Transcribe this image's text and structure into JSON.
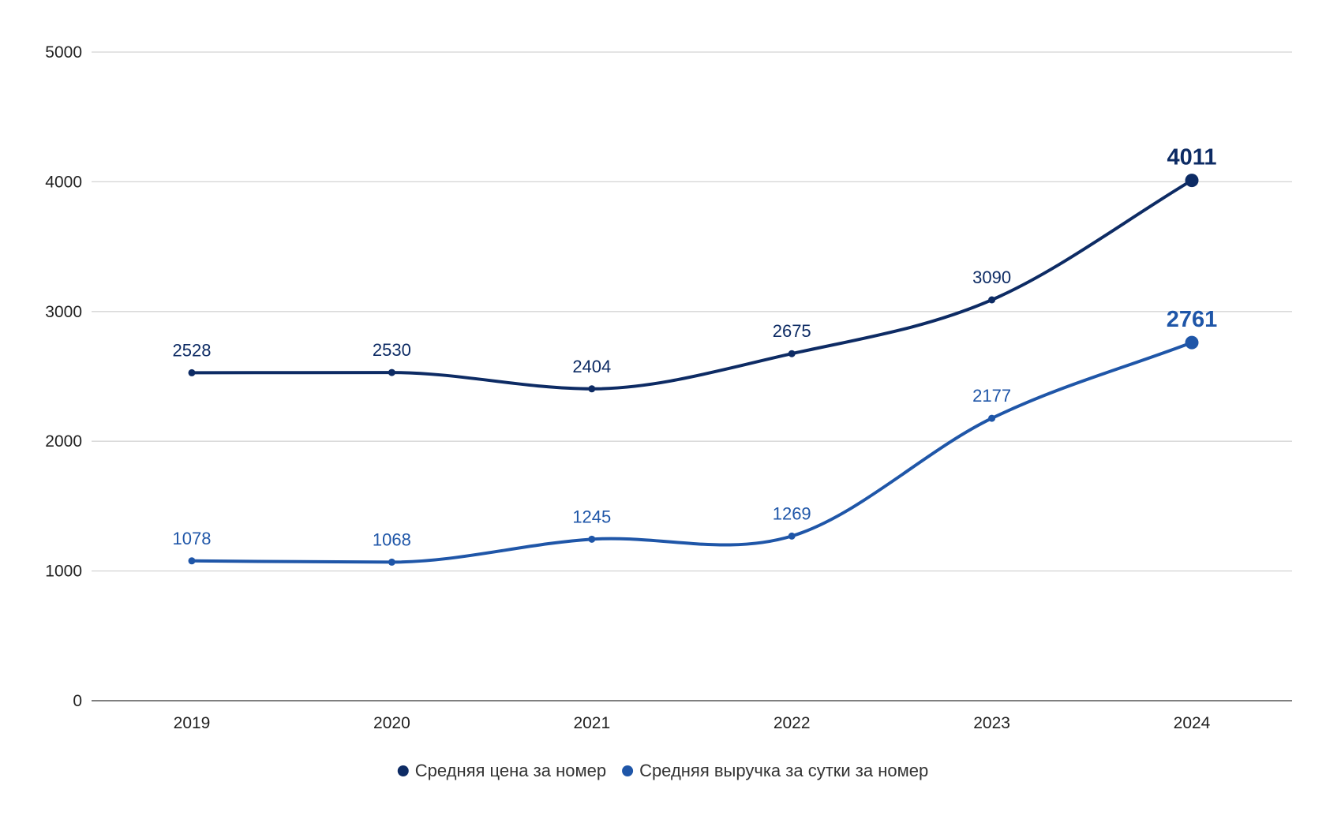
{
  "chart_data": {
    "type": "line",
    "title": "",
    "xlabel": "",
    "ylabel": "",
    "categories": [
      "2019",
      "2020",
      "2021",
      "2022",
      "2023",
      "2024"
    ],
    "ylim": [
      0,
      5000
    ],
    "yticks": [
      0,
      1000,
      2000,
      3000,
      4000,
      5000
    ],
    "grid": true,
    "legend_position": "bottom",
    "series": [
      {
        "name": "Средняя цена за номер",
        "color": "#0d2b64",
        "values": [
          2528,
          2530,
          2404,
          2675,
          3090,
          4011
        ]
      },
      {
        "name": "Средняя выручка за сутки за номер",
        "color": "#1f56a8",
        "values": [
          1078,
          1068,
          1245,
          1269,
          2177,
          2761
        ]
      }
    ]
  }
}
